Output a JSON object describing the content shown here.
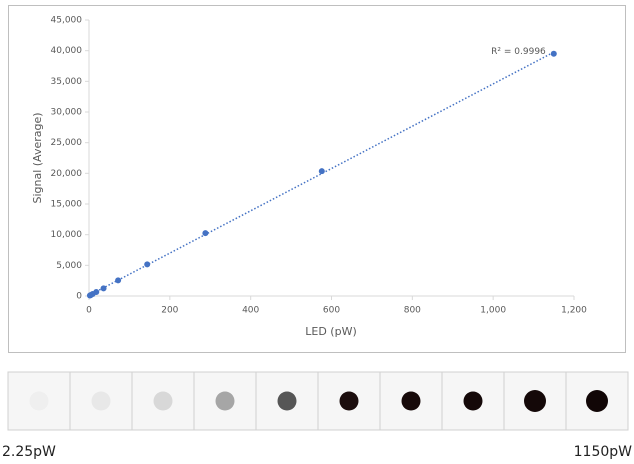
{
  "chart_data": {
    "type": "scatter",
    "x_label": "LED (pW)",
    "y_label": "Signal (Average)",
    "annotation": "R² = 0.9996",
    "color": "#4472c4",
    "trendline": true,
    "grid": false,
    "x": [
      2.25,
      4.5,
      9,
      18,
      36,
      72,
      144,
      288,
      576,
      1150
    ],
    "values": [
      80,
      170,
      330,
      650,
      1250,
      2550,
      5150,
      10250,
      20350,
      39500
    ],
    "xlim": [
      0,
      1200
    ],
    "xticks": [
      0,
      200,
      400,
      600,
      800,
      {
        "value": 1000,
        "label": "1,000"
      },
      {
        "value": 1200,
        "label": "1,200"
      }
    ],
    "ylim": [
      0,
      45000
    ],
    "yticks": [
      0,
      {
        "value": 5000,
        "label": "5,000"
      },
      {
        "value": 10000,
        "label": "10,000"
      },
      {
        "value": 15000,
        "label": "15,000"
      },
      {
        "value": 20000,
        "label": "20,000"
      },
      {
        "value": 25000,
        "label": "25,000"
      },
      {
        "value": 30000,
        "label": "30,000"
      },
      {
        "value": 35000,
        "label": "35,000"
      },
      {
        "value": 40000,
        "label": "40,000"
      },
      {
        "value": 45000,
        "label": "45,000"
      }
    ]
  },
  "strip": {
    "spot_colors": [
      "#efefef",
      "#e8e8e8",
      "#d8d8d8",
      "#a6a6a6",
      "#565656",
      "#1c0e0e",
      "#170a0a",
      "#150909",
      "#140808",
      "#110606"
    ],
    "start_label": "2.25pW",
    "end_label": "1150pW"
  }
}
